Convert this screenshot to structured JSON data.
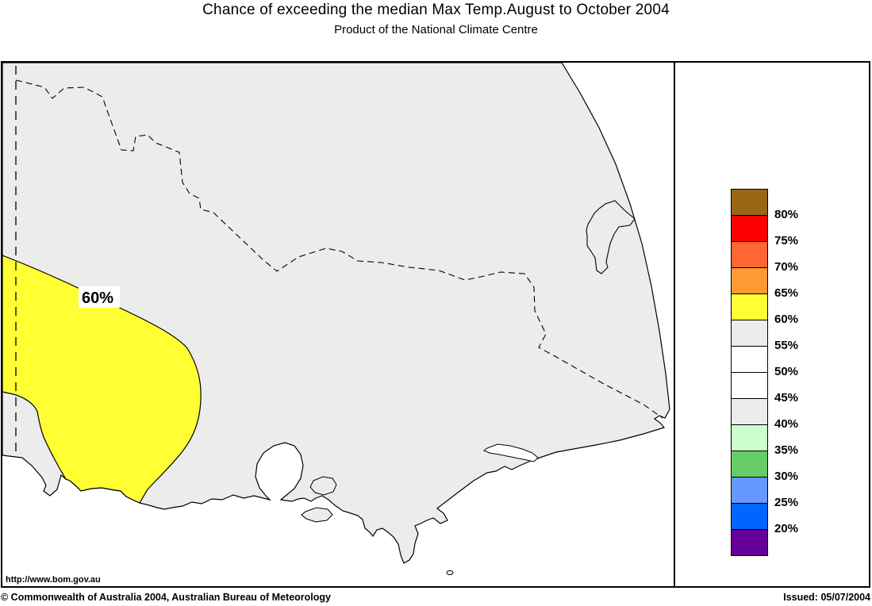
{
  "header": {
    "title": "Chance of exceeding the median Max Temp.August to October 2004",
    "subtitle": "Product of the National Climate Centre"
  },
  "map": {
    "region_label": "60%",
    "url_label": "http://www.bom.gov.au",
    "shaded_regions": [
      {
        "label": "60%",
        "range": "60-65%",
        "color": "#FFFF33",
        "location": "southwest corner of mapped area"
      },
      {
        "label": "",
        "range": "55-60%",
        "color": "#ECECEC",
        "location": "remainder of land area"
      }
    ]
  },
  "legend": {
    "entries": [
      {
        "color": "#996615",
        "label": "80%"
      },
      {
        "color": "#FF0000",
        "label": "75%"
      },
      {
        "color": "#FF6633",
        "label": "70%"
      },
      {
        "color": "#FF9933",
        "label": "65%"
      },
      {
        "color": "#FFFF33",
        "label": "60%"
      },
      {
        "color": "#ECECEC",
        "label": "55%"
      },
      {
        "color": "#FFFFFF",
        "label": "50%"
      },
      {
        "color": "#FFFFFF",
        "label": "45%"
      },
      {
        "color": "#ECECEC",
        "label": "40%"
      },
      {
        "color": "#CCFFCC",
        "label": "35%"
      },
      {
        "color": "#66CC66",
        "label": "30%"
      },
      {
        "color": "#6699FF",
        "label": "25%"
      },
      {
        "color": "#0066FF",
        "label": "20%"
      },
      {
        "color": "#660099",
        "label": ""
      }
    ]
  },
  "footer": {
    "copyright": "© Commonwealth of Australia 2004, Australian Bureau of Meteorology",
    "issued": "Issued: 05/07/2004"
  },
  "colors": {
    "land": "#ECECEC",
    "sea": "#FFFFFF",
    "highlight_60": "#FFFF33",
    "outline": "#000000",
    "label_bg": "#FFFFFF"
  }
}
